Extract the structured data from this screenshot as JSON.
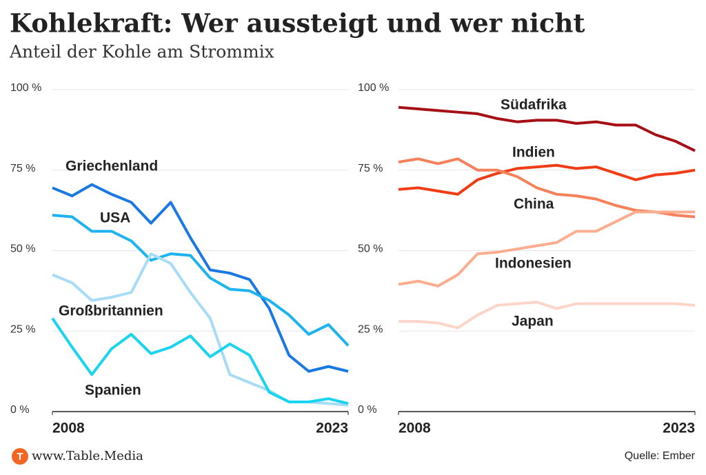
{
  "title": "Kohlekraft: Wer aussteigt und wer nicht",
  "subtitle": "Anteil der Kohle am Strommix",
  "logo_letter": "T",
  "brand": "www.Table.Media",
  "source": "Quelle: Ember",
  "chart_data": [
    {
      "type": "line",
      "x": [
        2008,
        2009,
        2010,
        2011,
        2012,
        2013,
        2014,
        2015,
        2016,
        2017,
        2018,
        2019,
        2020,
        2021,
        2022,
        2023
      ],
      "xlim": [
        2008,
        2023
      ],
      "xticks": [
        2008,
        2023
      ],
      "ylim": [
        0,
        100
      ],
      "yticks": [
        {
          "value": 0,
          "label": "0 %"
        },
        {
          "value": 25,
          "label": "25 %"
        },
        {
          "value": 50,
          "label": "50 %"
        },
        {
          "value": 75,
          "label": "75 %"
        },
        {
          "value": 100,
          "label": "100 %"
        }
      ],
      "grid": true,
      "series": [
        {
          "name": "Griechenland",
          "color": "#1a78e3",
          "values": [
            69.5,
            67,
            70.5,
            67.5,
            65,
            58.5,
            65,
            54,
            44,
            43,
            41,
            32,
            17.5,
            12.5,
            14,
            12.5
          ]
        },
        {
          "name": "USA",
          "color": "#1cb3ee",
          "values": [
            61,
            60.5,
            56,
            56,
            53,
            47,
            49,
            48.5,
            41.5,
            38,
            37.5,
            34.5,
            30,
            24,
            27,
            20.5
          ]
        },
        {
          "name": "Großbritannien",
          "color": "#a6dcf8",
          "values": [
            42.5,
            40,
            34.5,
            35.5,
            37,
            49,
            46,
            37,
            29,
            11.5,
            9,
            6.5,
            3,
            3,
            2.5,
            2
          ]
        },
        {
          "name": "Spanien",
          "color": "#18d4ee",
          "values": [
            29,
            20,
            11.5,
            19.5,
            24,
            18,
            20,
            23.5,
            17,
            21,
            17.5,
            6,
            3,
            3,
            4,
            2.5
          ]
        }
      ]
    },
    {
      "type": "line",
      "x": [
        2008,
        2009,
        2010,
        2011,
        2012,
        2013,
        2014,
        2015,
        2016,
        2017,
        2018,
        2019,
        2020,
        2021,
        2022,
        2023
      ],
      "xlim": [
        2008,
        2023
      ],
      "xticks": [
        2008,
        2023
      ],
      "ylim": [
        0,
        100
      ],
      "yticks": [
        {
          "value": 0,
          "label": "0 %"
        },
        {
          "value": 25,
          "label": "25 %"
        },
        {
          "value": 50,
          "label": "50 %"
        },
        {
          "value": 75,
          "label": "75 %"
        },
        {
          "value": 100,
          "label": "100 %"
        }
      ],
      "grid": true,
      "series": [
        {
          "name": "Südafrika",
          "color": "#a50f15",
          "values": [
            94.5,
            94,
            93.5,
            93,
            92.5,
            91,
            90,
            90.5,
            90.5,
            89.5,
            90,
            89,
            89,
            86,
            84,
            81
          ]
        },
        {
          "name": "Indien",
          "color": "#f03c14",
          "values": [
            69,
            69.5,
            68.5,
            67.5,
            72,
            74,
            75.5,
            76,
            76.5,
            75.5,
            76,
            74,
            72,
            73.5,
            74,
            75
          ]
        },
        {
          "name": "China",
          "color": "#f5805a",
          "values": [
            77.5,
            78.5,
            77,
            78.5,
            75,
            75,
            73,
            69.5,
            67.5,
            67,
            66,
            64,
            62.5,
            62,
            61,
            60.5
          ]
        },
        {
          "name": "Indonesien",
          "color": "#fcad90",
          "values": [
            39.5,
            40.5,
            39,
            42.5,
            49,
            49.5,
            50.5,
            51.5,
            52.5,
            56,
            56,
            59,
            62,
            62,
            62,
            62
          ]
        },
        {
          "name": "Japan",
          "color": "#fdd5c8",
          "values": [
            28,
            28,
            27.5,
            26,
            30,
            33,
            33.5,
            34,
            32,
            33.5,
            33.5,
            33.5,
            33.5,
            33.5,
            33.5,
            33
          ]
        }
      ]
    }
  ]
}
